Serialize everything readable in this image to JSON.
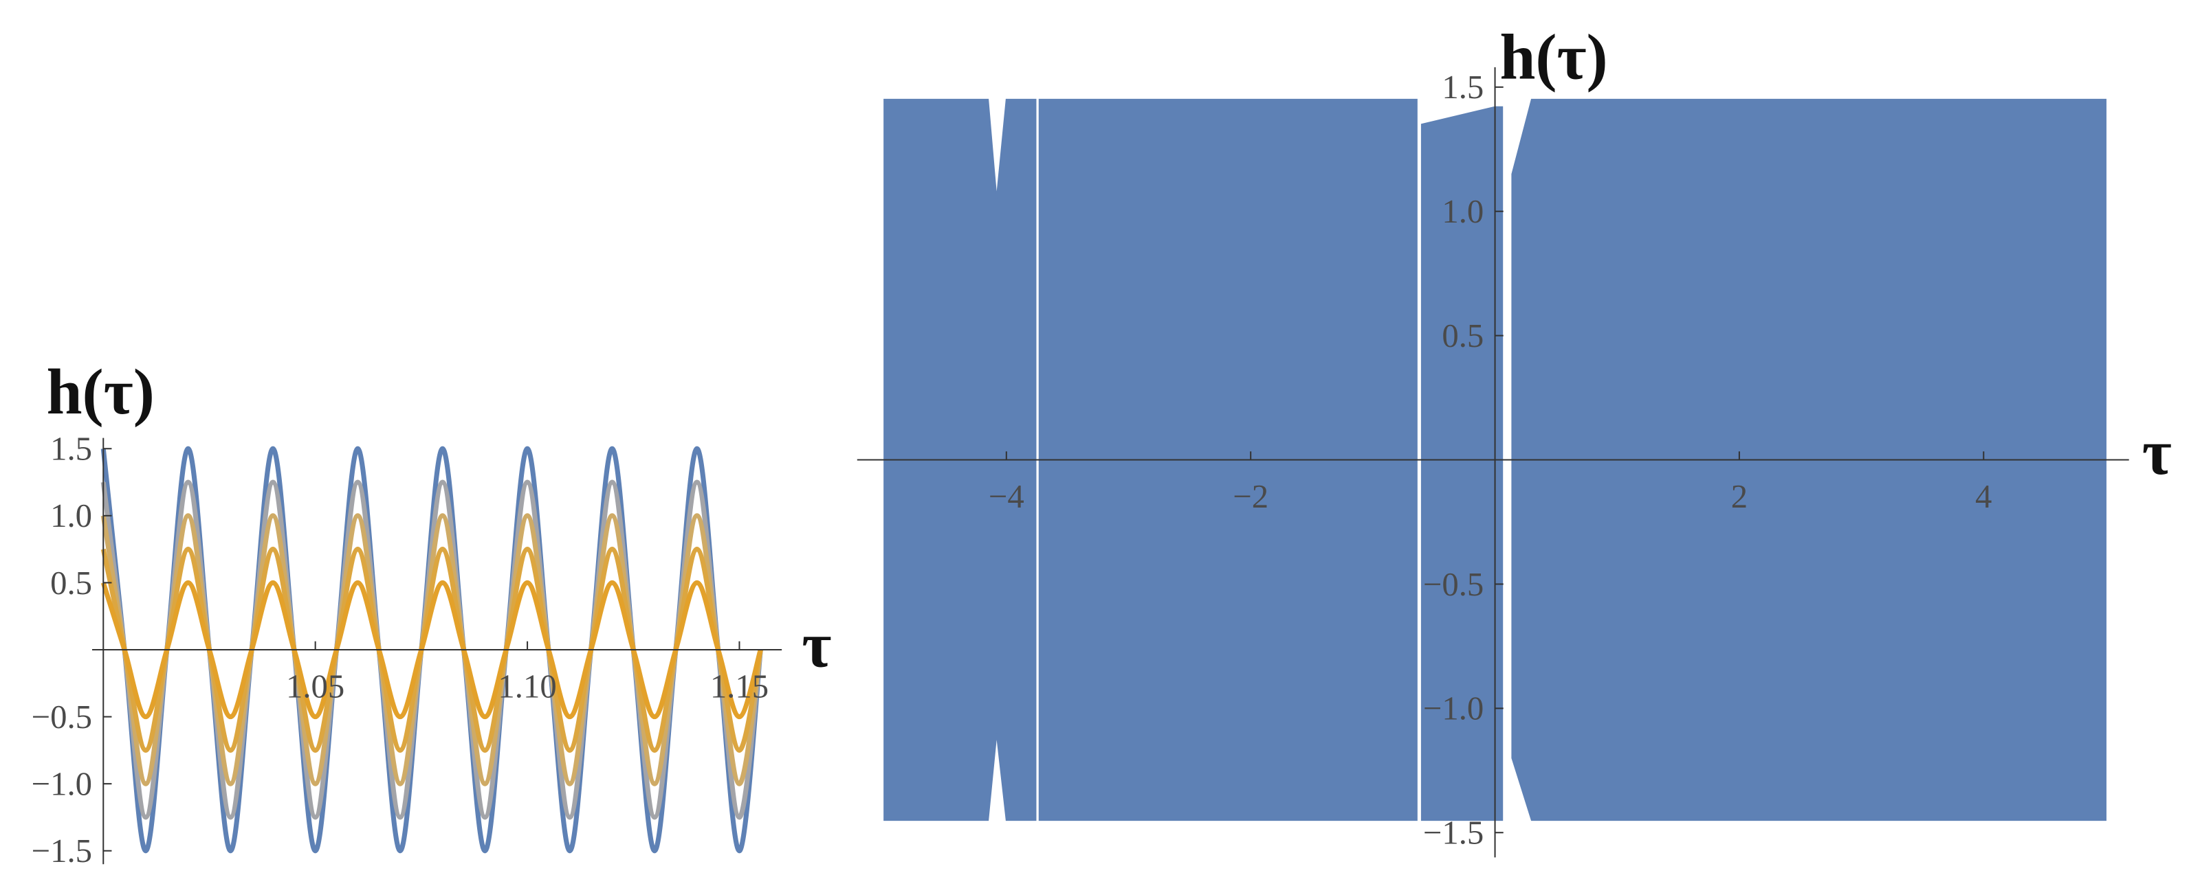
{
  "chart_data": [
    {
      "type": "line",
      "y_label": "h(τ)",
      "x_label": "τ",
      "x": [
        1,
        1.005,
        1.01,
        1.015,
        1.02,
        1.025,
        1.03,
        1.035,
        1.04,
        1.045,
        1.05,
        1.055,
        1.06,
        1.065,
        1.07,
        1.075,
        1.08,
        1.085,
        1.09,
        1.095,
        1.1,
        1.105,
        1.11,
        1.115,
        1.12,
        1.125,
        1.13,
        1.135,
        1.14,
        1.145,
        1.15,
        1.155
      ],
      "series": [
        {
          "color": "#5e81b5",
          "values": [
            1.5,
            0,
            -1.5,
            0,
            1.5,
            0,
            -1.5,
            0,
            1.5,
            0,
            -1.5,
            0,
            1.5,
            0,
            -1.5,
            0,
            1.5,
            0,
            -1.5,
            0,
            1.5,
            0,
            -1.5,
            0,
            1.5,
            0,
            -1.5,
            0,
            1.5,
            0,
            -1.5,
            0
          ]
        },
        {
          "color": "#a3a4a8",
          "values": [
            1.25,
            0,
            -1.25,
            0,
            1.25,
            0,
            -1.25,
            0,
            1.25,
            0,
            -1.25,
            0,
            1.25,
            0,
            -1.25,
            0,
            1.25,
            0,
            -1.25,
            0,
            1.25,
            0,
            -1.25,
            0,
            1.25,
            0,
            -1.25,
            0,
            1.25,
            0,
            -1.25,
            0
          ]
        },
        {
          "color": "#cfab66",
          "values": [
            1,
            0,
            -1,
            0,
            1,
            0,
            -1,
            0,
            1,
            0,
            -1,
            0,
            1,
            0,
            -1,
            0,
            1,
            0,
            -1,
            0,
            1,
            0,
            -1,
            0,
            1,
            0,
            -1,
            0,
            1,
            0,
            -1,
            0
          ]
        },
        {
          "color": "#dca640",
          "values": [
            0.75,
            0,
            -0.75,
            0,
            0.75,
            0,
            -0.75,
            0,
            0.75,
            0,
            -0.75,
            0,
            0.75,
            0,
            -0.75,
            0,
            0.75,
            0,
            -0.75,
            0,
            0.75,
            0,
            -0.75,
            0,
            0.75,
            0,
            -0.75,
            0,
            0.75,
            0,
            -0.75,
            0
          ]
        },
        {
          "color": "#e3a12a",
          "values": [
            0.5,
            0,
            -0.5,
            0,
            0.5,
            0,
            -0.5,
            0,
            0.5,
            0,
            -0.5,
            0,
            0.5,
            0,
            -0.5,
            0,
            0.5,
            0,
            -0.5,
            0,
            0.5,
            0,
            -0.5,
            0,
            0.5,
            0,
            -0.5,
            0,
            0.5,
            0,
            -0.5,
            0
          ]
        }
      ],
      "xlim": [
        1.0,
        1.16
      ],
      "ylim": [
        -1.6,
        1.58
      ],
      "xticks": [
        1.05,
        {
          "value": 1.1,
          "label": "1.10"
        },
        1.15
      ],
      "yticks": [
        {
          "value": -1.5,
          "label": "−1.5"
        },
        {
          "value": -1,
          "label": "−1.0"
        },
        {
          "value": -0.5,
          "label": "−0.5"
        },
        0.5,
        {
          "value": 1,
          "label": "1.0"
        },
        1.5
      ]
    },
    {
      "type": "band",
      "y_label": "h(τ)",
      "x_label": "τ",
      "color": "#5e81b5",
      "x": [
        -5,
        -4.15,
        -4.08,
        -4.0,
        -3.76,
        -3.75,
        -3.73,
        -0.64,
        -0.62,
        -0.6,
        0,
        0.06,
        0.1,
        0.14,
        0.3,
        4.3,
        5
      ],
      "upper": [
        1.45,
        1.45,
        1.05,
        1.45,
        1.45,
        null,
        1.45,
        1.45,
        null,
        1.35,
        1.42,
        1.42,
        null,
        1.15,
        1.45,
        1.45,
        1.45
      ],
      "lower": [
        -1.45,
        -1.45,
        -1.1,
        -1.45,
        -1.45,
        null,
        -1.45,
        -1.45,
        null,
        -1.45,
        -1.45,
        -1.45,
        null,
        -1.2,
        -1.45,
        -1.45,
        -1.45
      ],
      "xlim": [
        -5.13,
        5.19
      ],
      "ylim": [
        -1.6,
        1.58
      ],
      "xticks": [
        {
          "value": -4,
          "label": "−4"
        },
        {
          "value": -2,
          "label": "−2"
        },
        2,
        4
      ],
      "yticks": [
        {
          "value": -1.5,
          "label": "−1.5"
        },
        {
          "value": -1,
          "label": "−1.0"
        },
        {
          "value": -0.5,
          "label": "−0.5"
        },
        0.5,
        {
          "value": 1,
          "label": "1.0"
        },
        1.5
      ]
    }
  ]
}
